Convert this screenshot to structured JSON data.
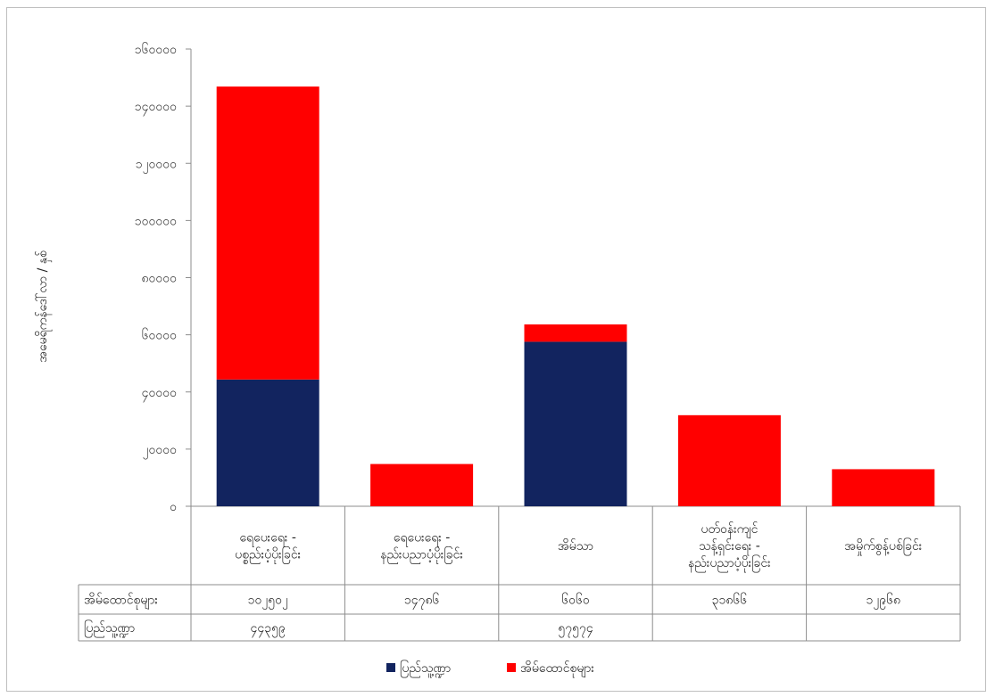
{
  "chart_data": {
    "type": "bar",
    "stacked": true,
    "ylabel": "အမေရိကန်ဒေါ်လာ / နှစ်",
    "ylim": [
      0,
      160000
    ],
    "yticks": [
      0,
      20000,
      40000,
      60000,
      80000,
      100000,
      120000,
      140000,
      160000
    ],
    "ytick_labels": [
      "၀",
      "၂၀၀၀၀",
      "၄၀၀၀၀",
      "၆၀၀၀၀",
      "၈၀၀၀၀",
      "၁၀၀၀၀၀",
      "၁၂၀၀၀၀",
      "၁၄၀၀၀၀",
      "၁၆၀၀၀၀"
    ],
    "categories": [
      [
        "ရေပေးရေး -",
        "ပစ္စည်းပံ့ပိုးခြင်း"
      ],
      [
        "ရေပေးရေး -",
        "နည်းပညာပံ့ပိုးခြင်း"
      ],
      [
        "အိမ်သာ"
      ],
      [
        "ပတ်ဝန်းကျင်",
        "သန့်ရှင်းရေး -",
        "နည်းပညာပံ့ပိုးခြင်း"
      ],
      [
        "အမှိုက်စွန့်ပစ်ခြင်း"
      ]
    ],
    "series": [
      {
        "name": "ပြည်သူ့ဏ္ဍာ",
        "color": "#12245f",
        "values": [
          44359,
          0,
          57574,
          0,
          0
        ],
        "labels": [
          "၄၄၃၅၉",
          "",
          "၅၇၅၇၄",
          "",
          ""
        ]
      },
      {
        "name": "အိမ်ထောင်စုများ",
        "color": "#ff0000",
        "values": [
          102502,
          14786,
          6060,
          31866,
          12968
        ],
        "labels": [
          "၁၀၂၅၀၂",
          "၁၄၇၈၆",
          "၆၀၆၀",
          "၃၁၈၆၆",
          "၁၂၉၆၈"
        ]
      }
    ],
    "legend": "bottom",
    "data_table": true,
    "grid": false
  }
}
